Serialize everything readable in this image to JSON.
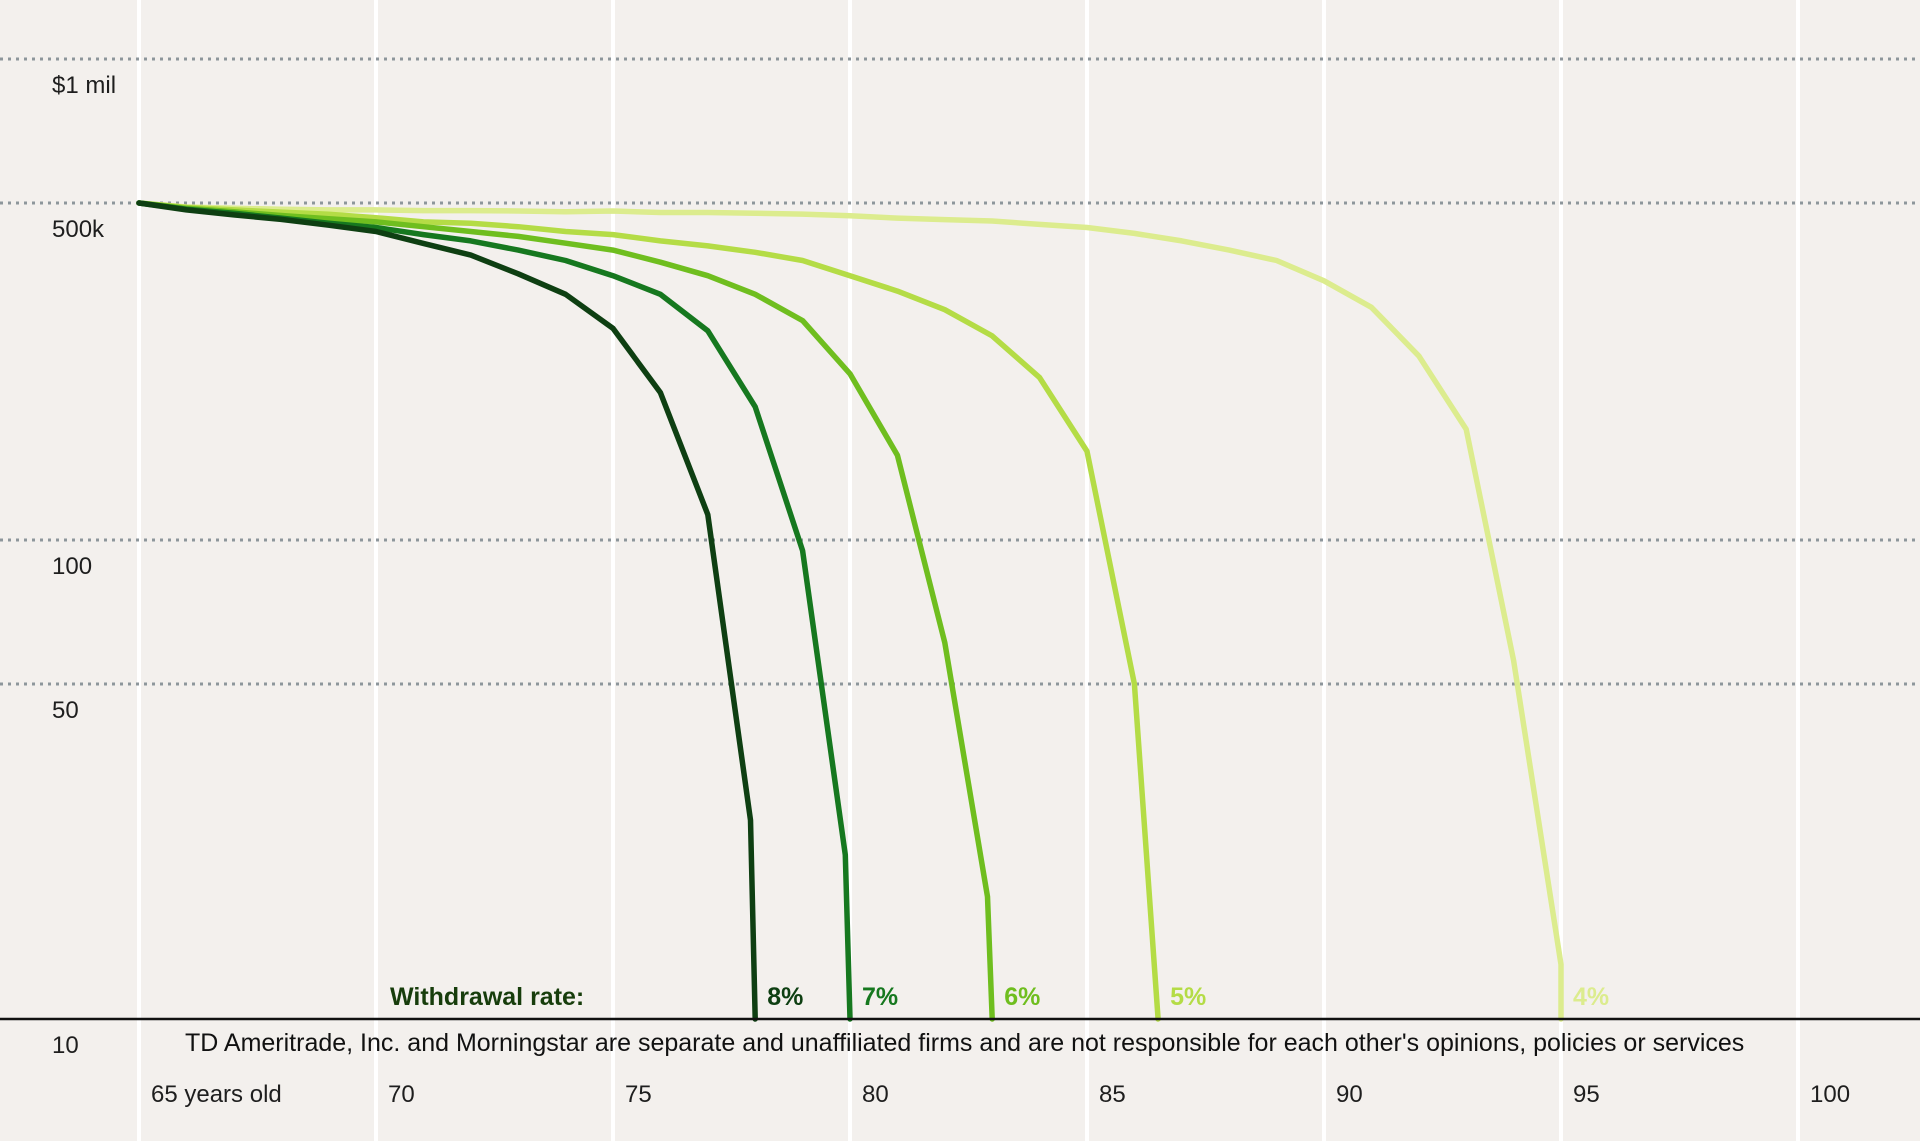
{
  "chart_data": {
    "type": "line",
    "title": "",
    "xlabel": "",
    "ylabel": "",
    "y_scale": "log",
    "xlim": [
      65,
      100
    ],
    "ylim": [
      10,
      1000000
    ],
    "x_ticks": [
      {
        "value": 65,
        "label": "65 years old"
      },
      {
        "value": 70,
        "label": "70"
      },
      {
        "value": 75,
        "label": "75"
      },
      {
        "value": 80,
        "label": "80"
      },
      {
        "value": 85,
        "label": "85"
      },
      {
        "value": 90,
        "label": "90"
      },
      {
        "value": 95,
        "label": "95"
      },
      {
        "value": 100,
        "label": "100"
      }
    ],
    "y_ticks": [
      {
        "value": 1000000,
        "label": "$1 mil"
      },
      {
        "value": 500000,
        "label": "500k"
      },
      {
        "value": 100,
        "label": "100"
      },
      {
        "value": 50,
        "label": "50"
      },
      {
        "value": 10,
        "label": "10"
      }
    ],
    "grid": {
      "vertical": true,
      "horizontal": "dotted"
    },
    "legend_title": "Withdrawal rate:",
    "series": [
      {
        "name": "4%",
        "color": "#dcec8e",
        "points": [
          [
            65,
            500000
          ],
          [
            66,
            452000
          ],
          [
            67,
            437000
          ],
          [
            68,
            428000
          ],
          [
            69,
            420000
          ],
          [
            70,
            420000
          ],
          [
            71,
            413000
          ],
          [
            72,
            413000
          ],
          [
            73,
            408000
          ],
          [
            74,
            400000
          ],
          [
            75,
            408000
          ],
          [
            76,
            393000
          ],
          [
            77,
            393000
          ],
          [
            78,
            385000
          ],
          [
            79,
            378000
          ],
          [
            80,
            362000
          ],
          [
            81,
            341000
          ],
          [
            82,
            329000
          ],
          [
            83,
            317000
          ],
          [
            84,
            291000
          ],
          [
            85,
            269000
          ],
          [
            86,
            232000
          ],
          [
            87,
            192000
          ],
          [
            88,
            152000
          ],
          [
            89,
            117000
          ],
          [
            90,
            69900
          ],
          [
            91,
            35800
          ],
          [
            92,
            10500
          ],
          [
            93,
            1640
          ],
          [
            94,
            56
          ],
          [
            95,
            13
          ],
          [
            95,
            10
          ]
        ]
      },
      {
        "name": "5%",
        "color": "#b4dc46",
        "points": [
          [
            65,
            500000
          ],
          [
            66,
            447000
          ],
          [
            67,
            420000
          ],
          [
            68,
            397000
          ],
          [
            69,
            376000
          ],
          [
            70,
            345000
          ],
          [
            71,
            310000
          ],
          [
            72,
            300000
          ],
          [
            73,
            275000
          ],
          [
            74,
            243000
          ],
          [
            75,
            225000
          ],
          [
            76,
            192000
          ],
          [
            77,
            169000
          ],
          [
            78,
            144000
          ],
          [
            79,
            117000
          ],
          [
            80,
            79600
          ],
          [
            81,
            54000
          ],
          [
            82,
            33700
          ],
          [
            83,
            17400
          ],
          [
            84,
            6060
          ],
          [
            85,
            941
          ],
          [
            86,
            50
          ],
          [
            86.5,
            10
          ]
        ]
      },
      {
        "name": "6%",
        "color": "#6fbe1f",
        "points": [
          [
            65,
            500000
          ],
          [
            66,
            437000
          ],
          [
            67,
            400000
          ],
          [
            68,
            365000
          ],
          [
            69,
            335000
          ],
          [
            70,
            310000
          ],
          [
            71,
            275000
          ],
          [
            72,
            243000
          ],
          [
            73,
            215000
          ],
          [
            74,
            181000
          ],
          [
            75,
            152000
          ],
          [
            76,
            112000
          ],
          [
            77,
            79600
          ],
          [
            78,
            49800
          ],
          [
            79,
            25600
          ],
          [
            80,
            6680
          ],
          [
            81,
            852
          ],
          [
            82,
            61
          ],
          [
            82.9,
            18
          ],
          [
            83,
            10
          ]
        ]
      },
      {
        "name": "7%",
        "color": "#16781f",
        "points": [
          [
            65,
            500000
          ],
          [
            66,
            428000
          ],
          [
            67,
            385000
          ],
          [
            68,
            341000
          ],
          [
            69,
            300000
          ],
          [
            70,
            269000
          ],
          [
            71,
            225000
          ],
          [
            72,
            192000
          ],
          [
            73,
            152000
          ],
          [
            74,
            117000
          ],
          [
            75,
            79600
          ],
          [
            76,
            49800
          ],
          [
            77,
            19800
          ],
          [
            78,
            2900
          ],
          [
            79,
            95
          ],
          [
            79.9,
            22
          ],
          [
            80,
            10
          ]
        ]
      },
      {
        "name": "8%",
        "color": "#0e3f12",
        "points": [
          [
            65,
            500000
          ],
          [
            66,
            420000
          ],
          [
            67,
            370000
          ],
          [
            68,
            330000
          ],
          [
            69,
            285000
          ],
          [
            70,
            243000
          ],
          [
            71,
            180000
          ],
          [
            72,
            134000
          ],
          [
            73,
            83500
          ],
          [
            74,
            49800
          ],
          [
            75,
            21000
          ],
          [
            76,
            4150
          ],
          [
            77,
            190
          ],
          [
            77.9,
            26
          ],
          [
            78,
            10
          ]
        ]
      }
    ],
    "footnote": "TD Ameritrade, Inc. and Morningstar are separate and unaffiliated firms and are not responsible for each other's opinions, policies or services"
  }
}
